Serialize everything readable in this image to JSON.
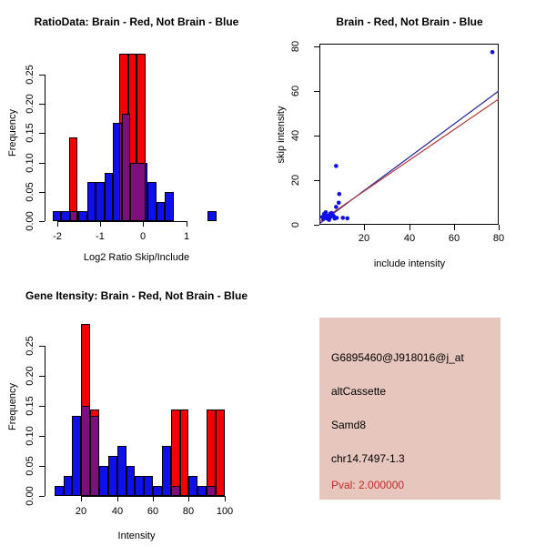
{
  "colors": {
    "blue": "#0f0fee",
    "red": "#f40000",
    "purple": "#7d0f7d",
    "line_blue": "#22229a",
    "line_red": "#b33636",
    "panel_pink": "#e7c6bd",
    "pval_red": "#c02828",
    "axis_black": "#000000"
  },
  "info_panel": {
    "probeset": "G6895460@J918016@j_at",
    "event_type": "altCassette",
    "gene": "Samd8",
    "location": "chr14.7497-1.3",
    "pval": "Pval: 2.000000"
  },
  "chart_data": [
    {
      "id": "ratio_hist",
      "type": "bar",
      "title": "RatioData: Brain - Red, Not Brain - Blue",
      "xlabel": "Log2 Ratio Skip/Include",
      "ylabel": "Frequency",
      "xticks": [
        -2,
        -1,
        0,
        1
      ],
      "yticks": [
        "0.00",
        "0.05",
        "0.10",
        "0.15",
        "0.20",
        "0.25"
      ],
      "xlim": [
        -2.33,
        2.06
      ],
      "ylim": [
        0,
        0.3026
      ],
      "bin_width": 0.2,
      "legend_note": "Brain histogram red, Not Brain histogram blue, overlap purple",
      "series": [
        {
          "name": "not_brain",
          "color": "blue",
          "bars": [
            {
              "x": -2.1,
              "w": 0.2,
              "h": 0.017
            },
            {
              "x": -1.9,
              "w": 0.2,
              "h": 0.017
            },
            {
              "x": -1.7,
              "w": 0.2,
              "h": 0.017
            },
            {
              "x": -1.5,
              "w": 0.2,
              "h": 0.017
            },
            {
              "x": -1.3,
              "w": 0.2,
              "h": 0.067
            },
            {
              "x": -1.1,
              "w": 0.2,
              "h": 0.067
            },
            {
              "x": -0.9,
              "w": 0.2,
              "h": 0.083
            },
            {
              "x": -0.7,
              "w": 0.2,
              "h": 0.167
            },
            {
              "x": -0.5,
              "w": 0.2,
              "h": 0.183
            },
            {
              "x": -0.3,
              "w": 0.2,
              "h": 0.1
            },
            {
              "x": -0.1,
              "w": 0.2,
              "h": 0.1
            },
            {
              "x": 0.1,
              "w": 0.2,
              "h": 0.067
            },
            {
              "x": 0.3,
              "w": 0.2,
              "h": 0.033
            },
            {
              "x": 0.5,
              "w": 0.2,
              "h": 0.05
            },
            {
              "x": 1.5,
              "w": 0.2,
              "h": 0.017
            }
          ]
        },
        {
          "name": "brain",
          "color": "red",
          "bars": [
            {
              "x": -1.72,
              "w": 0.2,
              "h": 0.143
            },
            {
              "x": -0.55,
              "w": 0.2,
              "h": 0.286
            },
            {
              "x": -0.35,
              "w": 0.2,
              "h": 0.286
            },
            {
              "x": -0.15,
              "w": 0.2,
              "h": 0.286
            }
          ]
        },
        {
          "name": "overlap",
          "color": "purple",
          "bars": [
            {
              "x": -1.7,
              "w": 0.18,
              "h": 0.017
            },
            {
              "x": -0.55,
              "w": 0.05,
              "h": 0.167
            },
            {
              "x": -0.5,
              "w": 0.2,
              "h": 0.183
            },
            {
              "x": -0.3,
              "w": 0.35,
              "h": 0.1
            }
          ]
        }
      ]
    },
    {
      "id": "scatter",
      "type": "scatter",
      "title": "Brain - Red, Not Brain - Blue",
      "xlabel": "include intensity",
      "ylabel": "skip intensity",
      "xticks": [
        20,
        40,
        60,
        80
      ],
      "yticks": [
        0,
        20,
        40,
        60,
        80
      ],
      "xlim": [
        0.2,
        79.8
      ],
      "ylim": [
        0,
        81.3
      ],
      "point_color": "blue",
      "points": [
        [
          1.5,
          3.5
        ],
        [
          2,
          2.6
        ],
        [
          2.3,
          4.9
        ],
        [
          2.8,
          3.2
        ],
        [
          3,
          5.6
        ],
        [
          3.4,
          4
        ],
        [
          3.8,
          2.7
        ],
        [
          4.1,
          4
        ],
        [
          4.5,
          2.2
        ],
        [
          5,
          5
        ],
        [
          5.2,
          3.5
        ],
        [
          5.6,
          5.3
        ],
        [
          6.5,
          4
        ],
        [
          7,
          2.8
        ],
        [
          7.6,
          8
        ],
        [
          7.6,
          26.4
        ],
        [
          7.9,
          3.1
        ],
        [
          8.8,
          9.9
        ],
        [
          9,
          13.8
        ],
        [
          10.6,
          3.1
        ],
        [
          12.6,
          2.9
        ],
        [
          77,
          77.5
        ]
      ],
      "lines": [
        {
          "color": "line_blue",
          "from": [
            0,
            0.3
          ],
          "to": [
            80,
            60.2
          ]
        },
        {
          "color": "line_red",
          "from": [
            0,
            1.2
          ],
          "to": [
            80,
            56.6
          ]
        }
      ]
    },
    {
      "id": "gene_hist",
      "type": "bar",
      "title": "Gene Itensity: Brain - Red, Not Brain - Blue",
      "xlabel": "Intensity",
      "ylabel": "Frequency",
      "xticks": [
        20,
        40,
        60,
        80,
        100
      ],
      "yticks": [
        "0.00",
        "0.05",
        "0.10",
        "0.15",
        "0.20",
        "0.25"
      ],
      "xlim": [
        -1.5,
        104.2
      ],
      "ylim": [
        0,
        0.298
      ],
      "bin_width": 5,
      "legend_note": "Brain histogram red, Not Brain histogram blue, overlap purple",
      "series": [
        {
          "name": "not_brain",
          "color": "blue",
          "bars": [
            {
              "x": 5,
              "w": 5,
              "h": 0.017
            },
            {
              "x": 10,
              "w": 5,
              "h": 0.033
            },
            {
              "x": 15,
              "w": 5,
              "h": 0.133
            },
            {
              "x": 20,
              "w": 5,
              "h": 0.15
            },
            {
              "x": 25,
              "w": 5,
              "h": 0.133
            },
            {
              "x": 30,
              "w": 5,
              "h": 0.05
            },
            {
              "x": 35,
              "w": 5,
              "h": 0.067
            },
            {
              "x": 40,
              "w": 5,
              "h": 0.083
            },
            {
              "x": 45,
              "w": 5,
              "h": 0.05
            },
            {
              "x": 50,
              "w": 5,
              "h": 0.033
            },
            {
              "x": 55,
              "w": 5,
              "h": 0.033
            },
            {
              "x": 60,
              "w": 5,
              "h": 0.017
            },
            {
              "x": 65,
              "w": 5,
              "h": 0.083
            },
            {
              "x": 70,
              "w": 5,
              "h": 0.017
            },
            {
              "x": 80,
              "w": 5,
              "h": 0.033
            },
            {
              "x": 85,
              "w": 5,
              "h": 0.017
            },
            {
              "x": 90,
              "w": 5,
              "h": 0.017
            }
          ]
        },
        {
          "name": "brain",
          "color": "red",
          "bars": [
            {
              "x": 20,
              "w": 5,
              "h": 0.286
            },
            {
              "x": 25,
              "w": 5,
              "h": 0.143
            },
            {
              "x": 70,
              "w": 5,
              "h": 0.143
            },
            {
              "x": 75,
              "w": 5,
              "h": 0.143
            },
            {
              "x": 90,
              "w": 5,
              "h": 0.143
            },
            {
              "x": 95,
              "w": 5,
              "h": 0.143
            }
          ]
        },
        {
          "name": "overlap",
          "color": "purple",
          "bars": [
            {
              "x": 20,
              "w": 5,
              "h": 0.15
            },
            {
              "x": 25,
              "w": 5,
              "h": 0.133
            },
            {
              "x": 70,
              "w": 5,
              "h": 0.017
            },
            {
              "x": 90,
              "w": 5,
              "h": 0.017
            }
          ]
        }
      ]
    }
  ]
}
